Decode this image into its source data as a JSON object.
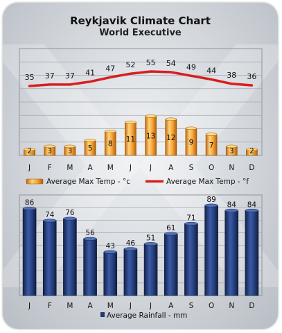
{
  "header": {
    "title": "Reykjavik Climate Chart",
    "subtitle": "World Executive"
  },
  "chart_data": [
    {
      "type": "bar",
      "categories": [
        "J",
        "F",
        "M",
        "A",
        "M",
        "J",
        "J",
        "A",
        "S",
        "O",
        "N",
        "D"
      ],
      "series": [
        {
          "name": "Average Max Temp - °c",
          "values": [
            2,
            3,
            3,
            5,
            8,
            11,
            13,
            12,
            9,
            7,
            3,
            2
          ],
          "color": "#f2a33a"
        },
        {
          "name": "Average Max Temp - °f",
          "type": "line",
          "values": [
            35,
            37,
            37,
            41,
            47,
            52,
            55,
            54,
            49,
            44,
            38,
            36
          ],
          "color": "#d81e1e"
        }
      ],
      "grid": true,
      "legend": "bottom"
    },
    {
      "type": "bar",
      "categories": [
        "J",
        "F",
        "M",
        "A",
        "M",
        "J",
        "J",
        "A",
        "S",
        "O",
        "N",
        "D"
      ],
      "series": [
        {
          "name": "Average Rainfall - mm",
          "values": [
            86,
            74,
            76,
            56,
            43,
            46,
            51,
            61,
            71,
            89,
            84,
            84
          ],
          "color": "#23386e"
        }
      ],
      "grid": true,
      "legend": "bottom"
    }
  ]
}
